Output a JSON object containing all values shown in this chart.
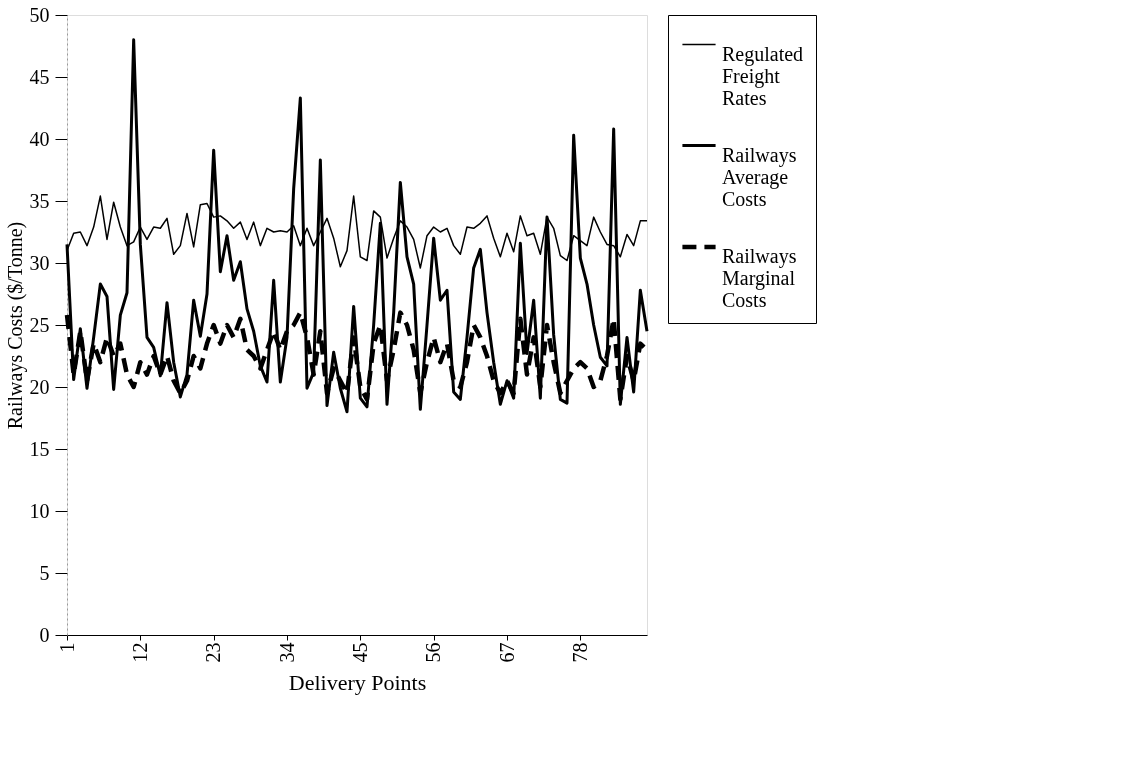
{
  "chart_data": {
    "type": "line",
    "xlabel": "Delivery Points",
    "ylabel": "Railways Costs ($/Tonne)",
    "x": [
      1,
      2,
      3,
      4,
      5,
      6,
      7,
      8,
      9,
      10,
      11,
      12,
      13,
      14,
      15,
      16,
      17,
      18,
      19,
      20,
      21,
      22,
      23,
      24,
      25,
      26,
      27,
      28,
      29,
      30,
      31,
      32,
      33,
      34,
      35,
      36,
      37,
      38,
      39,
      40,
      41,
      42,
      43,
      44,
      45,
      46,
      47,
      48,
      49,
      50,
      51,
      52,
      53,
      54,
      55,
      56,
      57,
      58,
      59,
      60,
      61,
      62,
      63,
      64,
      65,
      66,
      67,
      68,
      69,
      70,
      71,
      72,
      73,
      74,
      75,
      76,
      77,
      78,
      79,
      80,
      81,
      82,
      83,
      84,
      85,
      86,
      87,
      88
    ],
    "xlim": [
      1,
      88
    ],
    "xticks": [
      1,
      12,
      23,
      34,
      45,
      56,
      67,
      78
    ],
    "ylim": [
      0,
      50
    ],
    "yticks": [
      0,
      5,
      10,
      15,
      20,
      25,
      30,
      35,
      40,
      45,
      50
    ],
    "grid": false,
    "legend": "right",
    "marker": "none",
    "series": [
      {
        "name": "Regulated Freight Rates",
        "color": "#000000",
        "line_style": "solid",
        "values": [
          31.0,
          32.4,
          32.5,
          31.4,
          32.9,
          35.4,
          31.9,
          34.9,
          32.9,
          31.4,
          31.7,
          32.9,
          31.9,
          32.9,
          32.8,
          33.6,
          30.7,
          31.4,
          34.0,
          31.3,
          34.7,
          34.8,
          33.7,
          33.8,
          33.4,
          32.8,
          33.3,
          31.9,
          33.3,
          31.4,
          32.8,
          32.5,
          32.6,
          32.5,
          33.0,
          31.4,
          32.8,
          31.4,
          32.5,
          33.6,
          32.0,
          29.7,
          31.0,
          35.4,
          30.5,
          30.2,
          34.2,
          33.7,
          30.4,
          32.0,
          33.4,
          32.9,
          31.9,
          29.6,
          32.2,
          32.9,
          32.5,
          32.8,
          31.4,
          30.7,
          32.9,
          32.8,
          33.2,
          33.8,
          32.0,
          30.5,
          32.4,
          30.9,
          33.8,
          32.2,
          32.4,
          30.7,
          33.7,
          32.8,
          30.6,
          30.2,
          32.2,
          31.8,
          31.4,
          33.7,
          32.5,
          31.5,
          31.4,
          30.5,
          32.3,
          31.4,
          33.4,
          33.4
        ]
      },
      {
        "name": "Railways Average Costs",
        "color": "#000000",
        "line_style": "solid",
        "values": [
          31.5,
          20.6,
          24.7,
          19.9,
          24.0,
          28.3,
          27.3,
          19.8,
          25.8,
          27.6,
          48.0,
          31.5,
          24.0,
          23.2,
          20.9,
          26.8,
          22.0,
          19.2,
          21.0,
          27.0,
          24.1,
          27.5,
          39.1,
          29.3,
          32.2,
          28.6,
          30.1,
          26.3,
          24.5,
          21.7,
          20.4,
          28.6,
          20.4,
          24.0,
          36.0,
          43.3,
          19.9,
          21.2,
          38.3,
          18.5,
          22.8,
          19.9,
          18.0,
          26.5,
          19.1,
          18.4,
          25.0,
          33.2,
          18.6,
          26.0,
          36.5,
          30.5,
          28.3,
          18.2,
          25.0,
          32.0,
          27.0,
          27.8,
          19.6,
          19.0,
          24.0,
          29.6,
          31.1,
          26.0,
          22.0,
          18.6,
          20.5,
          19.1,
          31.6,
          22.7,
          27.0,
          19.1,
          33.7,
          24.2,
          19.0,
          18.7,
          40.3,
          30.4,
          28.3,
          25.0,
          22.4,
          21.7,
          40.8,
          18.6,
          24.0,
          19.6,
          27.8,
          24.5
        ]
      },
      {
        "name": "Railways Marginal Costs",
        "color": "#000000",
        "line_style": "dashed",
        "values": [
          25.8,
          21.0,
          24.5,
          20.5,
          23.5,
          22.0,
          24.0,
          22.5,
          23.5,
          21.0,
          20.0,
          22.0,
          21.0,
          22.5,
          21.0,
          22.5,
          20.5,
          19.5,
          20.5,
          22.5,
          21.5,
          23.5,
          25.0,
          23.5,
          25.0,
          24.0,
          25.5,
          23.0,
          22.5,
          21.5,
          23.0,
          24.5,
          23.0,
          24.5,
          25.0,
          26.0,
          24.0,
          21.0,
          24.5,
          19.5,
          21.5,
          20.5,
          19.5,
          24.0,
          20.0,
          19.0,
          23.5,
          25.0,
          20.5,
          23.0,
          26.0,
          25.0,
          23.0,
          19.5,
          22.0,
          24.0,
          22.0,
          23.5,
          20.5,
          20.0,
          22.0,
          25.0,
          24.0,
          22.5,
          20.5,
          19.5,
          20.5,
          19.5,
          25.5,
          21.0,
          24.0,
          20.0,
          25.0,
          22.0,
          19.5,
          20.5,
          21.5,
          22.0,
          21.5,
          20.0,
          20.5,
          22.5,
          25.5,
          19.0,
          22.5,
          20.5,
          23.5,
          23.0
        ]
      }
    ]
  }
}
